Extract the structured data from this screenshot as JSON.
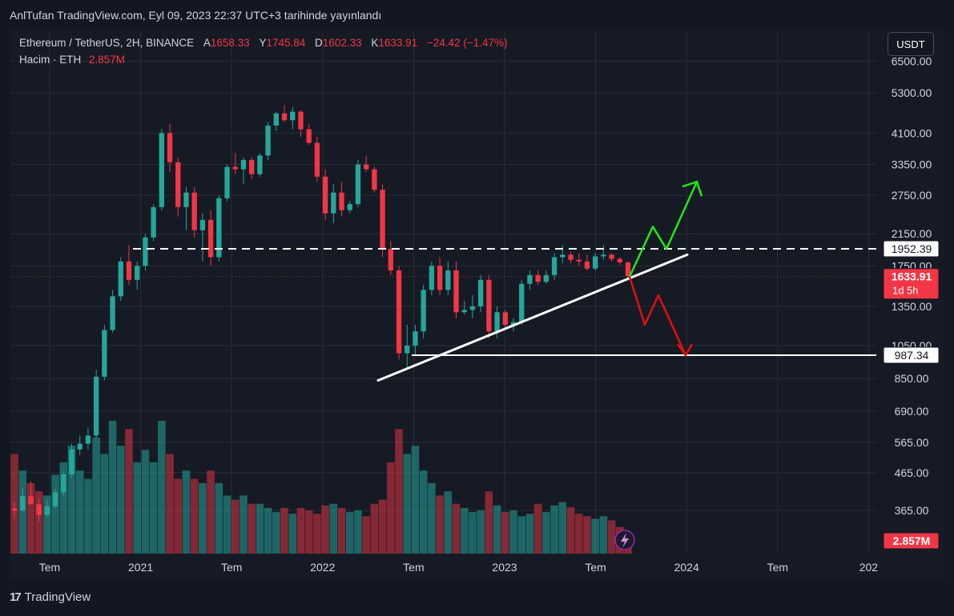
{
  "header": {
    "publish_line": "AnlTufan TradingView.com, Eyl 09, 2023 22:37 UTC+3 tarihinde yayınlandı"
  },
  "legend": {
    "symbol": "Ethereum / TetherUS, 2H, BINANCE",
    "open_key": "A",
    "open": "1658.33",
    "high_key": "Y",
    "high": "1745.84",
    "low_key": "D",
    "low": "1602.33",
    "close_key": "K",
    "close": "1633.91",
    "change": "−24.42 (−1.47%)",
    "volume_label": "Hacim · ETH",
    "volume_value": "2.857M"
  },
  "toolbar": {
    "currency": "USDT"
  },
  "brand": {
    "logo": "17",
    "name": "TradingView"
  },
  "colors": {
    "up": "#26a69a",
    "down": "#f23645",
    "bg": "#131722"
  },
  "chart_data": {
    "type": "candlestick",
    "symbol": "ETH/USDT",
    "scale": "log",
    "ylim": [
      320,
      7000
    ],
    "y_ticks": [
      "6500.00",
      "5300.00",
      "4100.00",
      "3350.00",
      "2750.00",
      "2150.00",
      "1750.00",
      "1350.00",
      "1050.00",
      "850.00",
      "690.00",
      "565.00",
      "465.00",
      "365.00"
    ],
    "x_ticks": [
      "Tem",
      "2021",
      "Tem",
      "2022",
      "Tem",
      "2023",
      "Tem",
      "2024",
      "Tem",
      "202"
    ],
    "price_badges": [
      {
        "label": "1952.39",
        "value": 1952.39,
        "style": "outline"
      },
      {
        "label": "1633.91",
        "value": 1633.91,
        "style": "red",
        "sub": "1d 5h"
      },
      {
        "label": "987.34",
        "value": 987.34,
        "style": "outline"
      },
      {
        "label": "2.857M",
        "style": "red-volume"
      }
    ],
    "levels": [
      {
        "name": "resistance",
        "value": 1952.39,
        "dashed": true
      },
      {
        "name": "support",
        "value": 987.34,
        "dashed": false
      }
    ],
    "trendline": [
      {
        "t": 0.0,
        "price": 840
      },
      {
        "t": 1.0,
        "price": 1880
      }
    ],
    "candles": [
      [
        370,
        385,
        350,
        365
      ],
      [
        365,
        420,
        360,
        400
      ],
      [
        400,
        440,
        380,
        380
      ],
      [
        380,
        395,
        340,
        355
      ],
      [
        355,
        390,
        350,
        375
      ],
      [
        375,
        420,
        370,
        410
      ],
      [
        410,
        470,
        400,
        460
      ],
      [
        460,
        560,
        450,
        540
      ],
      [
        540,
        590,
        520,
        560
      ],
      [
        560,
        620,
        540,
        590
      ],
      [
        590,
        900,
        580,
        860
      ],
      [
        860,
        1200,
        840,
        1160
      ],
      [
        1160,
        1500,
        1140,
        1440
      ],
      [
        1440,
        1850,
        1400,
        1800
      ],
      [
        1800,
        2000,
        1550,
        1600
      ],
      [
        1600,
        1800,
        1500,
        1750
      ],
      [
        1750,
        2150,
        1700,
        2100
      ],
      [
        2100,
        2600,
        2050,
        2550
      ],
      [
        2550,
        4200,
        2500,
        4100
      ],
      [
        4100,
        4350,
        3200,
        3400
      ],
      [
        3400,
        3500,
        2400,
        2550
      ],
      [
        2550,
        2900,
        2200,
        2800
      ],
      [
        2800,
        2900,
        2100,
        2200
      ],
      [
        2200,
        2450,
        1800,
        2350
      ],
      [
        2350,
        2500,
        1750,
        1850
      ],
      [
        1850,
        2750,
        1800,
        2700
      ],
      [
        2700,
        3350,
        2650,
        3300
      ],
      [
        3300,
        3600,
        3150,
        3250
      ],
      [
        3250,
        3500,
        2950,
        3450
      ],
      [
        3450,
        3500,
        3050,
        3150
      ],
      [
        3150,
        3600,
        3100,
        3550
      ],
      [
        3550,
        4400,
        3450,
        4300
      ],
      [
        4300,
        4700,
        4150,
        4650
      ],
      [
        4650,
        4900,
        4400,
        4450
      ],
      [
        4450,
        4850,
        4200,
        4700
      ],
      [
        4700,
        4750,
        4000,
        4200
      ],
      [
        4200,
        4350,
        3800,
        3850
      ],
      [
        3850,
        4000,
        3000,
        3100
      ],
      [
        3100,
        3250,
        2350,
        2450
      ],
      [
        2450,
        2950,
        2300,
        2800
      ],
      [
        2800,
        3000,
        2400,
        2500
      ],
      [
        2500,
        2650,
        2450,
        2600
      ],
      [
        2600,
        3450,
        2550,
        3350
      ],
      [
        3350,
        3550,
        3200,
        3250
      ],
      [
        3250,
        3300,
        2800,
        2850
      ],
      [
        2850,
        2950,
        1850,
        1950
      ],
      [
        1950,
        2050,
        1650,
        1700
      ],
      [
        1700,
        1750,
        960,
        1000
      ],
      [
        1000,
        1200,
        900,
        1050
      ],
      [
        1050,
        1200,
        980,
        1150
      ],
      [
        1150,
        1550,
        1100,
        1500
      ],
      [
        1500,
        1800,
        1450,
        1750
      ],
      [
        1750,
        1850,
        1450,
        1500
      ],
      [
        1500,
        1800,
        1450,
        1700
      ],
      [
        1700,
        1800,
        1250,
        1300
      ],
      [
        1300,
        1400,
        1280,
        1320
      ],
      [
        1320,
        1450,
        1250,
        1350
      ],
      [
        1350,
        1650,
        1300,
        1600
      ],
      [
        1600,
        1650,
        1100,
        1150
      ],
      [
        1150,
        1350,
        1100,
        1300
      ],
      [
        1300,
        1320,
        1180,
        1200
      ],
      [
        1200,
        1250,
        1150,
        1220
      ],
      [
        1220,
        1600,
        1200,
        1560
      ],
      [
        1560,
        1700,
        1500,
        1650
      ],
      [
        1650,
        1700,
        1550,
        1580
      ],
      [
        1580,
        1700,
        1560,
        1650
      ],
      [
        1650,
        1900,
        1600,
        1850
      ],
      [
        1850,
        2000,
        1780,
        1880
      ],
      [
        1880,
        1920,
        1780,
        1820
      ],
      [
        1820,
        1900,
        1750,
        1800
      ],
      [
        1800,
        1880,
        1700,
        1720
      ],
      [
        1720,
        1900,
        1700,
        1860
      ],
      [
        1860,
        2000,
        1820,
        1880
      ],
      [
        1880,
        1900,
        1800,
        1830
      ],
      [
        1830,
        1850,
        1760,
        1790
      ],
      [
        1790,
        1800,
        1600,
        1640
      ]
    ],
    "volumes": [
      120,
      100,
      85,
      75,
      70,
      95,
      110,
      130,
      100,
      90,
      140,
      120,
      160,
      130,
      150,
      110,
      125,
      110,
      160,
      120,
      90,
      100,
      90,
      85,
      100,
      85,
      70,
      65,
      70,
      60,
      60,
      55,
      50,
      55,
      48,
      55,
      52,
      48,
      58,
      60,
      55,
      50,
      52,
      45,
      60,
      65,
      110,
      150,
      120,
      130,
      100,
      85,
      70,
      75,
      60,
      55,
      50,
      52,
      75,
      58,
      50,
      52,
      45,
      48,
      60,
      50,
      58,
      62,
      56,
      48,
      45,
      42,
      45,
      40,
      32,
      22
    ],
    "forecast_up": [
      [
        0,
        1633
      ],
      [
        1,
        2250
      ],
      [
        2,
        1950
      ],
      [
        3,
        3000
      ]
    ],
    "forecast_down": [
      [
        0,
        1633
      ],
      [
        1,
        1200
      ],
      [
        2,
        1450
      ],
      [
        3,
        987
      ]
    ]
  }
}
